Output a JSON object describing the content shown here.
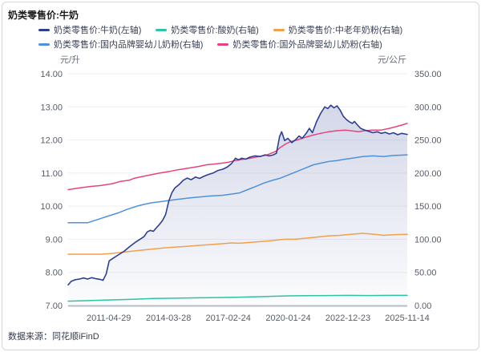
{
  "page": {
    "title": "奶类零售价:牛奶",
    "source": "数据来源：同花顺iFinD"
  },
  "legend": {
    "items": [
      {
        "label": "奶类零售价:牛奶(左轴)",
        "color": "#2e3f8f"
      },
      {
        "label": "奶类零售价:酸奶(右轴)",
        "color": "#2fc2a5"
      },
      {
        "label": "奶类零售价:中老年奶粉(右轴)",
        "color": "#f0a04d"
      },
      {
        "label": "奶类零售价:国内品牌婴幼儿奶粉(右轴)",
        "color": "#4e92d8"
      },
      {
        "label": "奶类零售价:国外品牌婴幼儿奶粉(右轴)",
        "color": "#e5437f"
      }
    ]
  },
  "chart_data": {
    "type": "line",
    "title": "奶类零售价:牛奶",
    "grid": true,
    "x_domain": [
      2009.35,
      2025.87
    ],
    "left_axis": {
      "label": "元/升",
      "min": 7,
      "max": 14,
      "ticks": [
        "14.00",
        "13.00",
        "12.00",
        "11.00",
        "10.00",
        "9.00",
        "8.00",
        "7.00"
      ]
    },
    "right_axis": {
      "label": "元/公斤",
      "min": 0,
      "max": 350,
      "ticks": [
        "350.00",
        "300.00",
        "250.00",
        "200.00",
        "150.00",
        "100.00",
        "50.00",
        "0.00"
      ]
    },
    "x_ticks": [
      {
        "label": "2011-04-29",
        "x": 2011.33
      },
      {
        "label": "2014-03-28",
        "x": 2014.24
      },
      {
        "label": "2017-02-24",
        "x": 2017.15
      },
      {
        "label": "2020-01-24",
        "x": 2020.07
      },
      {
        "label": "2022-12-23",
        "x": 2022.98
      },
      {
        "label": "2025-11-14",
        "x": 2025.87
      }
    ],
    "area_fill": {
      "top": "rgba(98,112,172,0.28)",
      "bottom": "rgba(98,112,172,0.02)"
    },
    "gridline_color": "#eceef5",
    "axisline_color": "#b6bbc7",
    "series": [
      {
        "name": "奶类零售价:牛奶",
        "axis": "left",
        "color": "#2e3f8f",
        "fill": true,
        "width": 1.6,
        "points": [
          [
            2009.35,
            7.62
          ],
          [
            2009.5,
            7.73
          ],
          [
            2009.7,
            7.78
          ],
          [
            2009.9,
            7.8
          ],
          [
            2010.1,
            7.83
          ],
          [
            2010.3,
            7.8
          ],
          [
            2010.5,
            7.84
          ],
          [
            2010.7,
            7.81
          ],
          [
            2010.9,
            7.79
          ],
          [
            2011.05,
            7.76
          ],
          [
            2011.2,
            7.95
          ],
          [
            2011.35,
            8.35
          ],
          [
            2011.6,
            8.45
          ],
          [
            2011.85,
            8.55
          ],
          [
            2012.1,
            8.65
          ],
          [
            2012.35,
            8.78
          ],
          [
            2012.6,
            8.9
          ],
          [
            2012.85,
            9.0
          ],
          [
            2013.05,
            9.08
          ],
          [
            2013.2,
            9.22
          ],
          [
            2013.35,
            9.27
          ],
          [
            2013.5,
            9.24
          ],
          [
            2013.65,
            9.35
          ],
          [
            2013.8,
            9.45
          ],
          [
            2013.95,
            9.57
          ],
          [
            2014.1,
            9.75
          ],
          [
            2014.25,
            10.15
          ],
          [
            2014.4,
            10.4
          ],
          [
            2014.55,
            10.55
          ],
          [
            2014.75,
            10.65
          ],
          [
            2014.95,
            10.78
          ],
          [
            2015.15,
            10.85
          ],
          [
            2015.35,
            10.8
          ],
          [
            2015.55,
            10.88
          ],
          [
            2015.75,
            10.84
          ],
          [
            2015.95,
            10.9
          ],
          [
            2016.15,
            10.95
          ],
          [
            2016.4,
            11.0
          ],
          [
            2016.65,
            11.08
          ],
          [
            2016.9,
            11.12
          ],
          [
            2017.1,
            11.18
          ],
          [
            2017.3,
            11.28
          ],
          [
            2017.5,
            11.45
          ],
          [
            2017.65,
            11.4
          ],
          [
            2017.8,
            11.45
          ],
          [
            2018.0,
            11.42
          ],
          [
            2018.2,
            11.48
          ],
          [
            2018.45,
            11.52
          ],
          [
            2018.7,
            11.5
          ],
          [
            2018.95,
            11.55
          ],
          [
            2019.15,
            11.52
          ],
          [
            2019.35,
            11.55
          ],
          [
            2019.5,
            11.6
          ],
          [
            2019.65,
            12.1
          ],
          [
            2019.75,
            12.25
          ],
          [
            2019.9,
            11.98
          ],
          [
            2020.05,
            12.05
          ],
          [
            2020.25,
            11.92
          ],
          [
            2020.45,
            12.02
          ],
          [
            2020.6,
            12.12
          ],
          [
            2020.75,
            12.05
          ],
          [
            2020.95,
            12.2
          ],
          [
            2021.1,
            12.35
          ],
          [
            2021.25,
            12.22
          ],
          [
            2021.45,
            12.55
          ],
          [
            2021.65,
            12.8
          ],
          [
            2021.85,
            13.0
          ],
          [
            2022.0,
            12.95
          ],
          [
            2022.15,
            13.05
          ],
          [
            2022.3,
            12.97
          ],
          [
            2022.45,
            13.03
          ],
          [
            2022.6,
            12.9
          ],
          [
            2022.75,
            12.72
          ],
          [
            2022.9,
            12.62
          ],
          [
            2023.05,
            12.55
          ],
          [
            2023.2,
            12.5
          ],
          [
            2023.3,
            12.56
          ],
          [
            2023.45,
            12.45
          ],
          [
            2023.6,
            12.35
          ],
          [
            2023.8,
            12.3
          ],
          [
            2024.0,
            12.26
          ],
          [
            2024.2,
            12.22
          ],
          [
            2024.4,
            12.25
          ],
          [
            2024.6,
            12.2
          ],
          [
            2024.8,
            12.23
          ],
          [
            2025.0,
            12.18
          ],
          [
            2025.2,
            12.22
          ],
          [
            2025.4,
            12.16
          ],
          [
            2025.6,
            12.2
          ],
          [
            2025.87,
            12.17
          ]
        ]
      },
      {
        "name": "奶类零售价:酸奶",
        "axis": "right",
        "color": "#2fc2a5",
        "fill": false,
        "width": 1.5,
        "points": [
          [
            2009.35,
            6.5
          ],
          [
            2010.5,
            7.5
          ],
          [
            2011.5,
            8.5
          ],
          [
            2012.5,
            9.5
          ],
          [
            2013.5,
            10.5
          ],
          [
            2014.5,
            11.0
          ],
          [
            2015.5,
            11.5
          ],
          [
            2016.5,
            12.0
          ],
          [
            2017.5,
            12.5
          ],
          [
            2018.5,
            13.2
          ],
          [
            2019.5,
            14.0
          ],
          [
            2020.1,
            14.5
          ],
          [
            2021.0,
            14.8
          ],
          [
            2022.0,
            15.0
          ],
          [
            2023.0,
            15.2
          ],
          [
            2024.0,
            15.0
          ],
          [
            2025.0,
            15.2
          ],
          [
            2025.87,
            15.3
          ]
        ]
      },
      {
        "name": "奶类零售价:中老年奶粉",
        "axis": "right",
        "color": "#f0a04d",
        "fill": false,
        "width": 1.5,
        "points": [
          [
            2009.35,
            77.5
          ],
          [
            2010.3,
            77.5
          ],
          [
            2011.0,
            77.5
          ],
          [
            2011.4,
            78.5
          ],
          [
            2011.9,
            80
          ],
          [
            2012.6,
            82.5
          ],
          [
            2013.4,
            85
          ],
          [
            2014.2,
            87.5
          ],
          [
            2015.0,
            89
          ],
          [
            2015.8,
            91
          ],
          [
            2016.5,
            92.5
          ],
          [
            2017.3,
            94.5
          ],
          [
            2017.7,
            94
          ],
          [
            2018.5,
            96
          ],
          [
            2019.1,
            97.5
          ],
          [
            2019.9,
            100
          ],
          [
            2020.4,
            100
          ],
          [
            2021.2,
            102.5
          ],
          [
            2022.0,
            105
          ],
          [
            2022.6,
            106
          ],
          [
            2023.1,
            107.5
          ],
          [
            2023.7,
            109
          ],
          [
            2024.3,
            107.5
          ],
          [
            2024.7,
            106
          ],
          [
            2025.3,
            107
          ],
          [
            2025.87,
            107.5
          ]
        ]
      },
      {
        "name": "奶类零售价:国内品牌婴幼儿奶粉",
        "axis": "right",
        "color": "#4e92d8",
        "fill": false,
        "width": 1.5,
        "points": [
          [
            2009.35,
            125
          ],
          [
            2010.3,
            125
          ],
          [
            2010.8,
            130
          ],
          [
            2011.3,
            135
          ],
          [
            2011.8,
            140
          ],
          [
            2012.2,
            145
          ],
          [
            2012.7,
            150
          ],
          [
            2013.0,
            152.5
          ],
          [
            2013.4,
            155
          ],
          [
            2014.0,
            157.5
          ],
          [
            2014.6,
            160
          ],
          [
            2015.3,
            162.5
          ],
          [
            2016.1,
            165
          ],
          [
            2016.9,
            166.5
          ],
          [
            2017.7,
            170
          ],
          [
            2018.1,
            175
          ],
          [
            2018.5,
            180
          ],
          [
            2018.9,
            185
          ],
          [
            2019.3,
            189
          ],
          [
            2019.7,
            192.5
          ],
          [
            2020.1,
            197.5
          ],
          [
            2020.5,
            202.5
          ],
          [
            2020.9,
            207.5
          ],
          [
            2021.3,
            212.5
          ],
          [
            2021.65,
            215
          ],
          [
            2022.05,
            217.5
          ],
          [
            2022.45,
            219
          ],
          [
            2022.85,
            221
          ],
          [
            2023.2,
            222.5
          ],
          [
            2023.7,
            225
          ],
          [
            2024.2,
            226
          ],
          [
            2024.7,
            225
          ],
          [
            2025.15,
            226.5
          ],
          [
            2025.87,
            227.5
          ]
        ]
      },
      {
        "name": "奶类零售价:国外品牌婴幼儿奶粉",
        "axis": "right",
        "color": "#e5437f",
        "fill": false,
        "width": 1.5,
        "points": [
          [
            2009.35,
            175
          ],
          [
            2009.9,
            177.5
          ],
          [
            2010.5,
            180
          ],
          [
            2010.9,
            181
          ],
          [
            2011.5,
            184
          ],
          [
            2011.9,
            187.5
          ],
          [
            2012.3,
            189
          ],
          [
            2012.6,
            192.5
          ],
          [
            2013.0,
            195
          ],
          [
            2013.4,
            197.5
          ],
          [
            2013.8,
            200
          ],
          [
            2014.3,
            202.5
          ],
          [
            2014.7,
            205
          ],
          [
            2015.2,
            207.5
          ],
          [
            2015.7,
            210
          ],
          [
            2016.1,
            212.5
          ],
          [
            2016.6,
            214
          ],
          [
            2017.1,
            216
          ],
          [
            2017.5,
            219
          ],
          [
            2017.9,
            221
          ],
          [
            2018.25,
            222.5
          ],
          [
            2018.65,
            225
          ],
          [
            2019.05,
            227.5
          ],
          [
            2019.45,
            232.5
          ],
          [
            2019.7,
            239
          ],
          [
            2019.95,
            244
          ],
          [
            2020.2,
            247.5
          ],
          [
            2020.5,
            250
          ],
          [
            2020.9,
            254
          ],
          [
            2021.3,
            257.5
          ],
          [
            2021.65,
            260
          ],
          [
            2022.05,
            262.5
          ],
          [
            2022.45,
            264
          ],
          [
            2022.85,
            265
          ],
          [
            2023.1,
            264
          ],
          [
            2023.5,
            262.5
          ],
          [
            2023.8,
            264
          ],
          [
            2024.15,
            265
          ],
          [
            2024.6,
            265
          ],
          [
            2025.0,
            267.5
          ],
          [
            2025.3,
            270
          ],
          [
            2025.6,
            272.5
          ],
          [
            2025.87,
            275
          ]
        ]
      }
    ]
  }
}
